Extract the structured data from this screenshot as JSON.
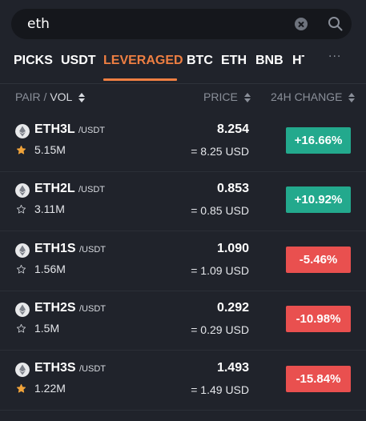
{
  "search": {
    "value": "eth"
  },
  "tabs": [
    {
      "label": "PICKS",
      "active": false
    },
    {
      "label": "USDT",
      "active": false
    },
    {
      "label": "LEVERAGED",
      "active": true
    },
    {
      "label": "BTC",
      "active": false
    },
    {
      "label": "ETH",
      "active": false
    },
    {
      "label": "BNB",
      "active": false
    },
    {
      "label": "HT",
      "active": false
    }
  ],
  "more_label": "···",
  "columns": {
    "pair": "PAIR",
    "separator": "/",
    "vol": "VOL",
    "price": "PRICE",
    "change": "24H CHANGE"
  },
  "colors": {
    "accent": "#ef7f42",
    "up": "#23a98d",
    "down": "#e9504f",
    "background": "#20232b",
    "star_filled": "#f0a33a"
  },
  "rows": [
    {
      "base": "ETH3L",
      "quote": "/USDT",
      "vol": "5.15M",
      "favorite": true,
      "price": "8.254",
      "price_usd": "= 8.25 USD",
      "change": "+16.66%",
      "direction": "up"
    },
    {
      "base": "ETH2L",
      "quote": "/USDT",
      "vol": "3.11M",
      "favorite": false,
      "price": "0.853",
      "price_usd": "= 0.85 USD",
      "change": "+10.92%",
      "direction": "up"
    },
    {
      "base": "ETH1S",
      "quote": "/USDT",
      "vol": "1.56M",
      "favorite": false,
      "price": "1.090",
      "price_usd": "= 1.09 USD",
      "change": "-5.46%",
      "direction": "down"
    },
    {
      "base": "ETH2S",
      "quote": "/USDT",
      "vol": "1.5M",
      "favorite": false,
      "price": "0.292",
      "price_usd": "= 0.29 USD",
      "change": "-10.98%",
      "direction": "down"
    },
    {
      "base": "ETH3S",
      "quote": "/USDT",
      "vol": "1.22M",
      "favorite": true,
      "price": "1.493",
      "price_usd": "= 1.49 USD",
      "change": "-15.84%",
      "direction": "down"
    }
  ]
}
